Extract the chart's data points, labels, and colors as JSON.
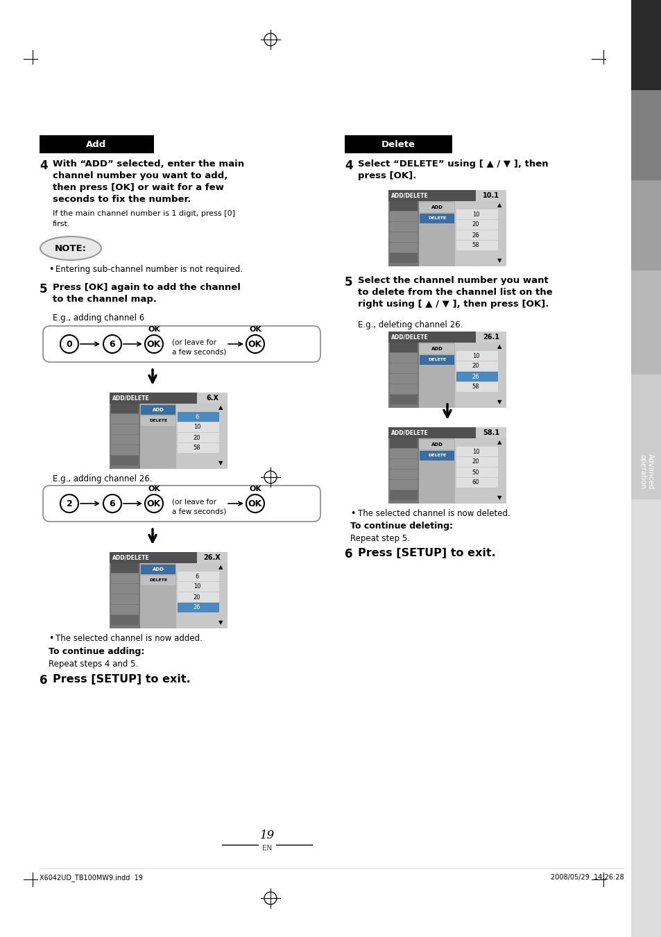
{
  "bg_color": "#ffffff",
  "page_width": 9.54,
  "page_height": 13.51,
  "add_header": "Add",
  "delete_header": "Delete",
  "step4_add_line1": "With “ADD” selected, enter the main",
  "step4_add_line2": "channel number you want to add,",
  "step4_add_line3": "then press [OK] or wait for a few",
  "step4_add_line4": "seconds to fix the number.",
  "step4_add_small1": "If the main channel number is 1 digit, press [0]",
  "step4_add_small2": "first.",
  "note_label": "NOTE:",
  "note_bullet": "Entering sub-channel number is not required.",
  "step5_add_line1": "Press [OK] again to add the channel",
  "step5_add_line2": "to the channel map.",
  "eg_ch6": "E.g., adding channel 6",
  "eg_ch26": "E.g., adding channel 26.",
  "step4_del_line1": "Select “DELETE” using [ ▲ / ▼ ], then",
  "step4_del_line2": "press [OK].",
  "step5_del_line1": "Select the channel number you want",
  "step5_del_line2": "to delete from the channel list on the",
  "step5_del_line3": "right using [ ▲ / ▼ ], then press [OK].",
  "eg_del26": "E.g., deleting channel 26.",
  "bullet_deleted": "The selected channel is now deleted.",
  "bullet_added": "The selected channel is now added.",
  "to_continue_adding": "To continue adding:",
  "repeat_45": "Repeat steps 4 and 5.",
  "to_continue_deleting": "To continue deleting:",
  "repeat_5": "Repeat step 5.",
  "step6_add": "Press [SETUP] to exit.",
  "step6_del": "Press [SETUP] to exit.",
  "page_num": "19",
  "page_sub": "EN",
  "footer_left": "X6042UD_TB100MW9.indd  19",
  "footer_right": "2008/05/29  14:26:28",
  "sidebar_bands": [
    [
      0,
      130,
      "#2a2a2a"
    ],
    [
      130,
      260,
      "#808080"
    ],
    [
      260,
      390,
      "#a0a0a0"
    ],
    [
      390,
      540,
      "#b8b8b8"
    ],
    [
      540,
      720,
      "#cccccc"
    ],
    [
      720,
      1351,
      "#dddddd"
    ]
  ]
}
